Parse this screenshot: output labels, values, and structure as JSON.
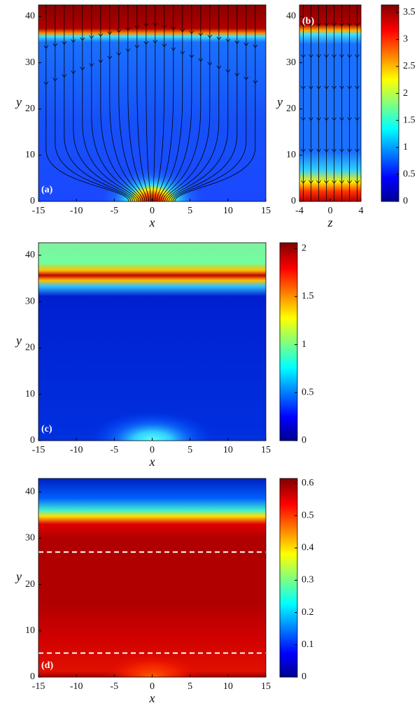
{
  "chart_data": [
    {
      "type": "heatmap",
      "panel_label": "(a)",
      "xlabel": "x",
      "ylabel": "y",
      "xlim": [
        -15,
        15
      ],
      "ylim": [
        0,
        42.5
      ],
      "xticks": [
        -15,
        -10,
        -5,
        0,
        5,
        10,
        15
      ],
      "yticks": [
        0,
        10,
        20,
        30,
        40
      ],
      "colorbar": {
        "lim": [
          0,
          3.64
        ],
        "ticks": [
          0,
          0.5,
          1,
          1.5,
          2,
          2.5,
          3,
          3.5
        ]
      }
    },
    {
      "type": "heatmap",
      "panel_label": "(b)",
      "xlabel": "z",
      "ylabel": "y",
      "xlim": [
        -4,
        4
      ],
      "ylim": [
        0,
        42.5
      ],
      "xticks": [
        -4,
        0,
        4
      ],
      "yticks": [
        0,
        10,
        20,
        30,
        40
      ]
    },
    {
      "type": "heatmap",
      "panel_label": "(c)",
      "xlabel": "x",
      "ylabel": "y",
      "xlim": [
        -15,
        15
      ],
      "ylim": [
        0,
        42.7
      ],
      "xticks": [
        -15,
        -10,
        -5,
        0,
        5,
        10,
        15
      ],
      "yticks": [
        0,
        10,
        20,
        30,
        40
      ],
      "colorbar": {
        "lim": [
          0,
          2.06
        ],
        "ticks": [
          0,
          0.5,
          1,
          1.5,
          2
        ]
      }
    },
    {
      "type": "heatmap",
      "panel_label": "(d)",
      "xlabel": "x",
      "ylabel": "y",
      "xlim": [
        -15,
        15
      ],
      "ylim": [
        0,
        42.9
      ],
      "xticks": [
        -15,
        -10,
        -5,
        0,
        5,
        10,
        15
      ],
      "yticks": [
        0,
        10,
        20,
        30,
        40
      ],
      "reference_lines": [
        27,
        5.2
      ],
      "colorbar": {
        "lim": [
          0,
          0.615
        ],
        "ticks": [
          0,
          0.1,
          0.2,
          0.3,
          0.4,
          0.5,
          0.6
        ]
      }
    }
  ]
}
